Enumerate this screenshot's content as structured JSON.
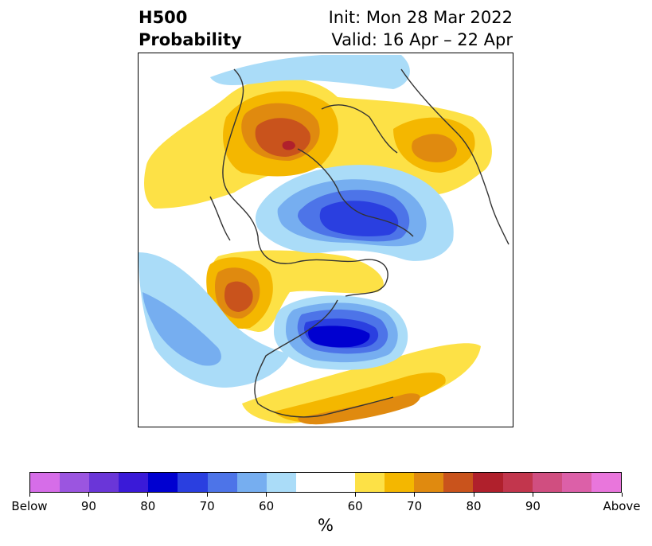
{
  "header": {
    "title_line1": "H500",
    "title_line2": "Probability",
    "init_text": "Init: Mon 28 Mar 2022",
    "valid_text": "Valid: 16 Apr – 22 Apr"
  },
  "colorbar": {
    "unit": "%",
    "colors": [
      "#d66de8",
      "#9b55e0",
      "#6a36d8",
      "#3a1ad8",
      "#0000d0",
      "#2a3fe0",
      "#4d74e8",
      "#76aef0",
      "#aadcf8",
      "#ffffff",
      "#ffffff",
      "#fde146",
      "#f4b700",
      "#e08a0f",
      "#c9531c",
      "#b0202c",
      "#c2364d",
      "#d04e80",
      "#dc60a8",
      "#e976dc"
    ],
    "tick_labels": [
      "Below",
      "90",
      "80",
      "70",
      "60",
      "60",
      "70",
      "80",
      "90",
      "Above"
    ]
  },
  "map": {
    "below_colors": {
      "c55": "#aadcf8",
      "c60": "#76aef0",
      "c65": "#4d74e8",
      "c70": "#2a3fe0",
      "c75": "#0000d0"
    },
    "above_colors": {
      "c55": "#fde146",
      "c60": "#f4b700",
      "c65": "#e08a0f",
      "c70": "#c9531c",
      "c75": "#b0202c"
    },
    "coast_color": "#333333"
  }
}
